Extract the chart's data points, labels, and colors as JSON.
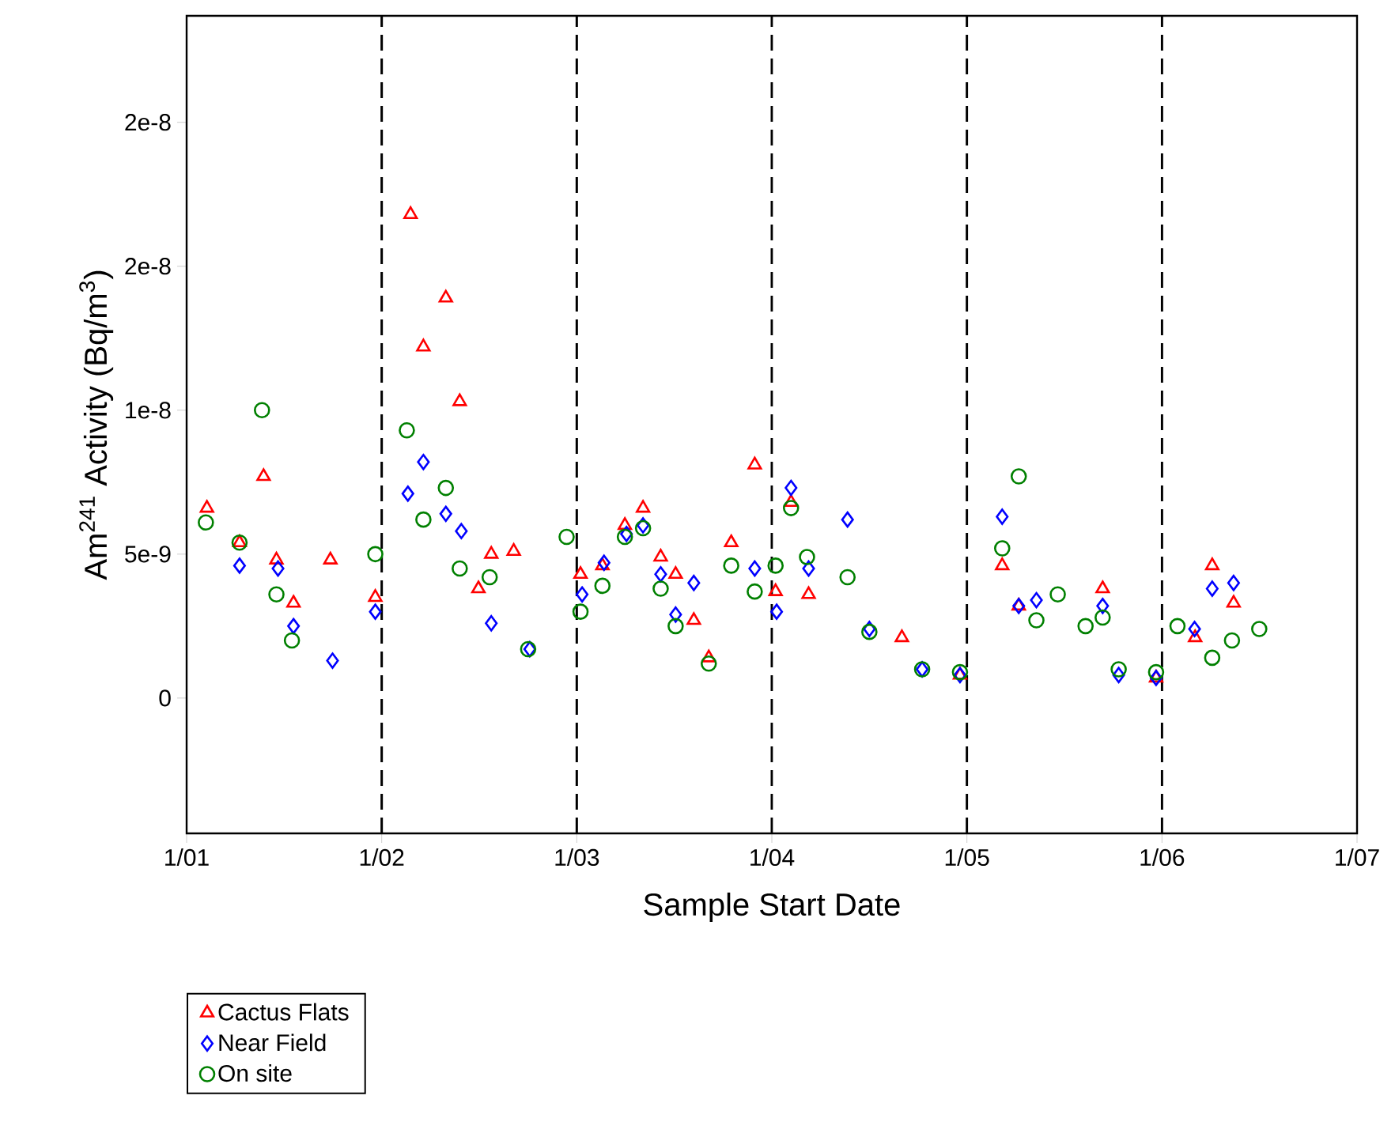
{
  "chart_data": {
    "type": "scatter",
    "xlabel": "Sample Start Date",
    "ylabel": "Am$^{241}$ Activity (Bq/m$^{3}$)",
    "xlim": [
      "2001-01-01",
      "2007-01-01"
    ],
    "xticks": [
      {
        "value": "2001-01-01",
        "label": "1/01"
      },
      {
        "value": "2002-01-01",
        "label": "1/02"
      },
      {
        "value": "2003-01-01",
        "label": "1/03"
      },
      {
        "value": "2004-01-01",
        "label": "1/04"
      },
      {
        "value": "2005-01-01",
        "label": "1/05"
      },
      {
        "value": "2006-01-01",
        "label": "1/06"
      },
      {
        "value": "2007-01-01",
        "label": "1/07"
      }
    ],
    "ylim": [
      -4.7e-09,
      2.37e-08
    ],
    "yticks": [
      0,
      {
        "value": 5e-09,
        "label": "5e-9"
      },
      {
        "value": 1e-08,
        "label": "1e-8"
      },
      {
        "value": 1.5e-08,
        "label": "2e-8"
      },
      {
        "value": 2e-08,
        "label": "2e-8"
      }
    ],
    "legend": "bottom left",
    "ref_lines": [
      {
        "axis": "x",
        "value": "2002-01-01",
        "color": "#000000",
        "line_style": "dashed"
      },
      {
        "axis": "x",
        "value": "2003-01-01",
        "color": "#000000",
        "line_style": "dashed"
      },
      {
        "axis": "x",
        "value": "2004-01-01",
        "color": "#000000",
        "line_style": "dashed"
      },
      {
        "axis": "x",
        "value": "2005-01-01",
        "color": "#000000",
        "line_style": "dashed"
      },
      {
        "axis": "x",
        "value": "2006-01-01",
        "color": "#000000",
        "line_style": "dashed"
      }
    ],
    "series": [
      {
        "name": "Cactus Flats",
        "color": "#ff0000",
        "marker": "triangle",
        "x": [
          "2001-02-08",
          "2001-04-10",
          "2001-05-25",
          "2001-06-18",
          "2001-07-20",
          "2001-09-27",
          "2001-12-20",
          "2002-02-24",
          "2002-03-20",
          "2002-05-01",
          "2002-05-27",
          "2002-07-01",
          "2002-07-25",
          "2002-09-05",
          "2003-01-08",
          "2003-02-18",
          "2003-04-01",
          "2003-05-05",
          "2003-06-07",
          "2003-07-05",
          "2003-08-08",
          "2003-09-05",
          "2003-10-17",
          "2003-11-30",
          "2004-01-08",
          "2004-02-06",
          "2004-03-10",
          "2004-09-01",
          "2004-12-19",
          "2005-03-08",
          "2005-04-08",
          "2005-09-12",
          "2005-12-21",
          "2006-03-04",
          "2006-04-05",
          "2006-05-15"
        ],
        "values": [
          6.6e-09,
          5.4e-09,
          7.7e-09,
          4.8e-09,
          3.3e-09,
          4.8e-09,
          3.5e-09,
          1.68e-08,
          1.22e-08,
          1.39e-08,
          1.03e-08,
          3.8e-09,
          5e-09,
          5.1e-09,
          4.3e-09,
          4.6e-09,
          6e-09,
          6.6e-09,
          4.9e-09,
          4.3e-09,
          2.7e-09,
          1.4e-09,
          5.4e-09,
          8.1e-09,
          3.7e-09,
          6.8e-09,
          3.6e-09,
          2.1e-09,
          8e-10,
          4.6e-09,
          3.2e-09,
          3.8e-09,
          7e-10,
          2.1e-09,
          4.6e-09,
          3.3e-09
        ]
      },
      {
        "name": "Near Field",
        "color": "#0000ff",
        "marker": "diamond",
        "x": [
          "2001-04-10",
          "2001-06-21",
          "2001-07-20",
          "2001-10-01",
          "2001-12-20",
          "2002-02-19",
          "2002-03-20",
          "2002-05-01",
          "2002-05-30",
          "2002-07-25",
          "2002-10-05",
          "2003-01-11",
          "2003-02-21",
          "2003-04-04",
          "2003-05-05",
          "2003-06-07",
          "2003-07-05",
          "2003-08-08",
          "2003-11-30",
          "2004-01-10",
          "2004-02-06",
          "2004-03-10",
          "2004-05-22",
          "2004-07-02",
          "2004-10-09",
          "2004-12-19",
          "2005-03-08",
          "2005-04-08",
          "2005-05-11",
          "2005-09-12",
          "2005-10-12",
          "2005-12-21",
          "2006-03-03",
          "2006-04-05",
          "2006-05-15"
        ],
        "values": [
          4.6e-09,
          4.5e-09,
          2.5e-09,
          1.3e-09,
          3e-09,
          7.1e-09,
          8.2e-09,
          6.4e-09,
          5.8e-09,
          2.6e-09,
          1.7e-09,
          3.6e-09,
          4.7e-09,
          5.7e-09,
          6e-09,
          4.3e-09,
          2.9e-09,
          4e-09,
          4.5e-09,
          3e-09,
          7.3e-09,
          4.5e-09,
          6.2e-09,
          2.4e-09,
          1e-09,
          8e-10,
          6.3e-09,
          3.2e-09,
          3.4e-09,
          3.2e-09,
          8e-10,
          7e-10,
          2.4e-09,
          3.8e-09,
          4e-09
        ]
      },
      {
        "name": "On site",
        "color": "#008000",
        "marker": "circle",
        "x": [
          "2001-02-06",
          "2001-04-10",
          "2001-05-22",
          "2001-06-18",
          "2001-07-17",
          "2001-12-20",
          "2002-02-17",
          "2002-03-20",
          "2002-05-01",
          "2002-05-27",
          "2002-07-22",
          "2002-10-02",
          "2002-12-13",
          "2003-01-08",
          "2003-02-18",
          "2003-04-01",
          "2003-05-05",
          "2003-06-07",
          "2003-07-05",
          "2003-09-05",
          "2003-10-17",
          "2003-11-30",
          "2004-01-08",
          "2004-02-06",
          "2004-03-07",
          "2004-05-22",
          "2004-07-02",
          "2004-10-09",
          "2004-12-19",
          "2005-03-08",
          "2005-04-08",
          "2005-05-11",
          "2005-06-20",
          "2005-08-11",
          "2005-09-12",
          "2005-10-12",
          "2005-12-21",
          "2006-01-30",
          "2006-04-05",
          "2006-05-12",
          "2006-07-02"
        ],
        "values": [
          6.1e-09,
          5.4e-09,
          1e-08,
          3.6e-09,
          2e-09,
          5e-09,
          9.3e-09,
          6.2e-09,
          7.3e-09,
          4.5e-09,
          4.2e-09,
          1.7e-09,
          5.6e-09,
          3e-09,
          3.9e-09,
          5.6e-09,
          5.9e-09,
          3.8e-09,
          2.5e-09,
          1.2e-09,
          4.6e-09,
          3.7e-09,
          4.6e-09,
          6.6e-09,
          4.9e-09,
          4.2e-09,
          2.3e-09,
          1e-09,
          9e-10,
          5.2e-09,
          7.7e-09,
          2.7e-09,
          3.6e-09,
          2.5e-09,
          2.8e-09,
          1e-09,
          9e-10,
          2.5e-09,
          1.4e-09,
          2e-09,
          2.4e-09
        ]
      }
    ]
  }
}
